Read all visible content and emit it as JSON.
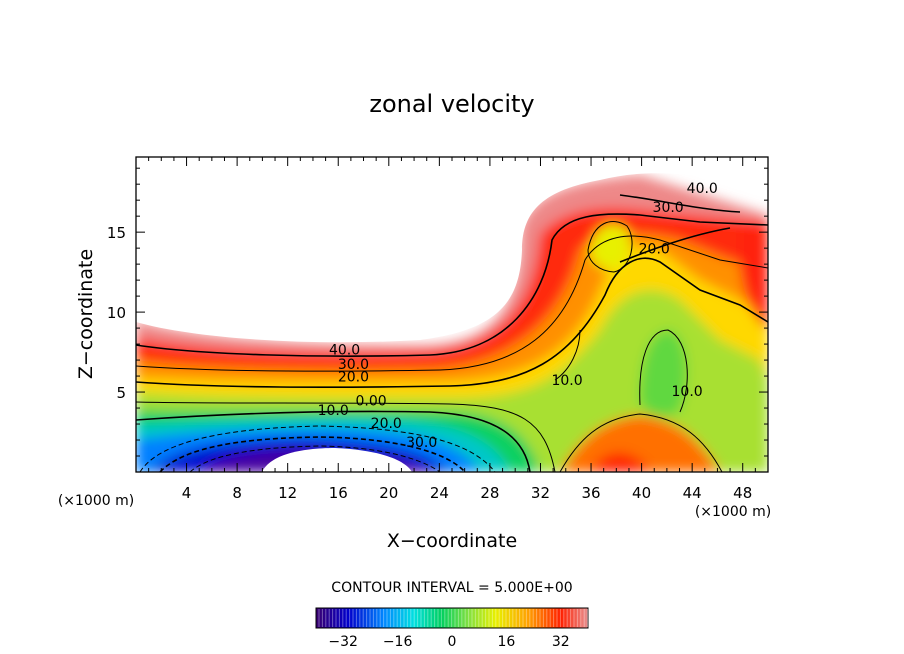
{
  "chart_data": {
    "type": "heatmap",
    "title": "zonal velocity",
    "xlabel": "X−coordinate",
    "ylabel": "Z−coordinate",
    "x_unit_left": "(×1000 m)",
    "x_unit_right": "(×1000 m)",
    "xlim": [
      0,
      50
    ],
    "ylim": [
      0,
      19.7
    ],
    "x_ticks": [
      4,
      8,
      12,
      16,
      20,
      24,
      28,
      32,
      36,
      40,
      44,
      48
    ],
    "y_ticks": [
      5,
      10,
      15
    ],
    "contour_interval_text": "CONTOUR INTERVAL = 5.000E+00",
    "colorbar_range": [
      -40,
      40
    ],
    "colorbar_ticks": [
      -32,
      -16,
      0,
      16,
      32
    ],
    "contour_labels": [
      {
        "text": "40.0",
        "x": 16.5,
        "z": 7.6
      },
      {
        "text": "30.0",
        "x": 17.2,
        "z": 6.7
      },
      {
        "text": "20.0",
        "x": 17.2,
        "z": 5.9
      },
      {
        "text": "0.00",
        "x": 18.6,
        "z": 4.4
      },
      {
        "text": "10.0",
        "x": 15.6,
        "z": 3.8
      },
      {
        "text": "20.0",
        "x": 19.8,
        "z": 3.0
      },
      {
        "text": "30.0",
        "x": 22.6,
        "z": 1.8
      },
      {
        "text": "10.0",
        "x": 34.1,
        "z": 5.7
      },
      {
        "text": "10.0",
        "x": 43.6,
        "z": 5.0
      },
      {
        "text": "20.0",
        "x": 41.0,
        "z": 13.9
      },
      {
        "text": "30.0",
        "x": 42.1,
        "z": 16.5
      },
      {
        "text": "40.0",
        "x": 44.8,
        "z": 17.7
      }
    ],
    "grid": false
  },
  "colors": {
    "colormap": [
      "#3a0070",
      "#0000cc",
      "#0088ff",
      "#00e0e0",
      "#00d060",
      "#80e040",
      "#e8f000",
      "#ffa000",
      "#ff2000",
      "#e89090"
    ]
  }
}
